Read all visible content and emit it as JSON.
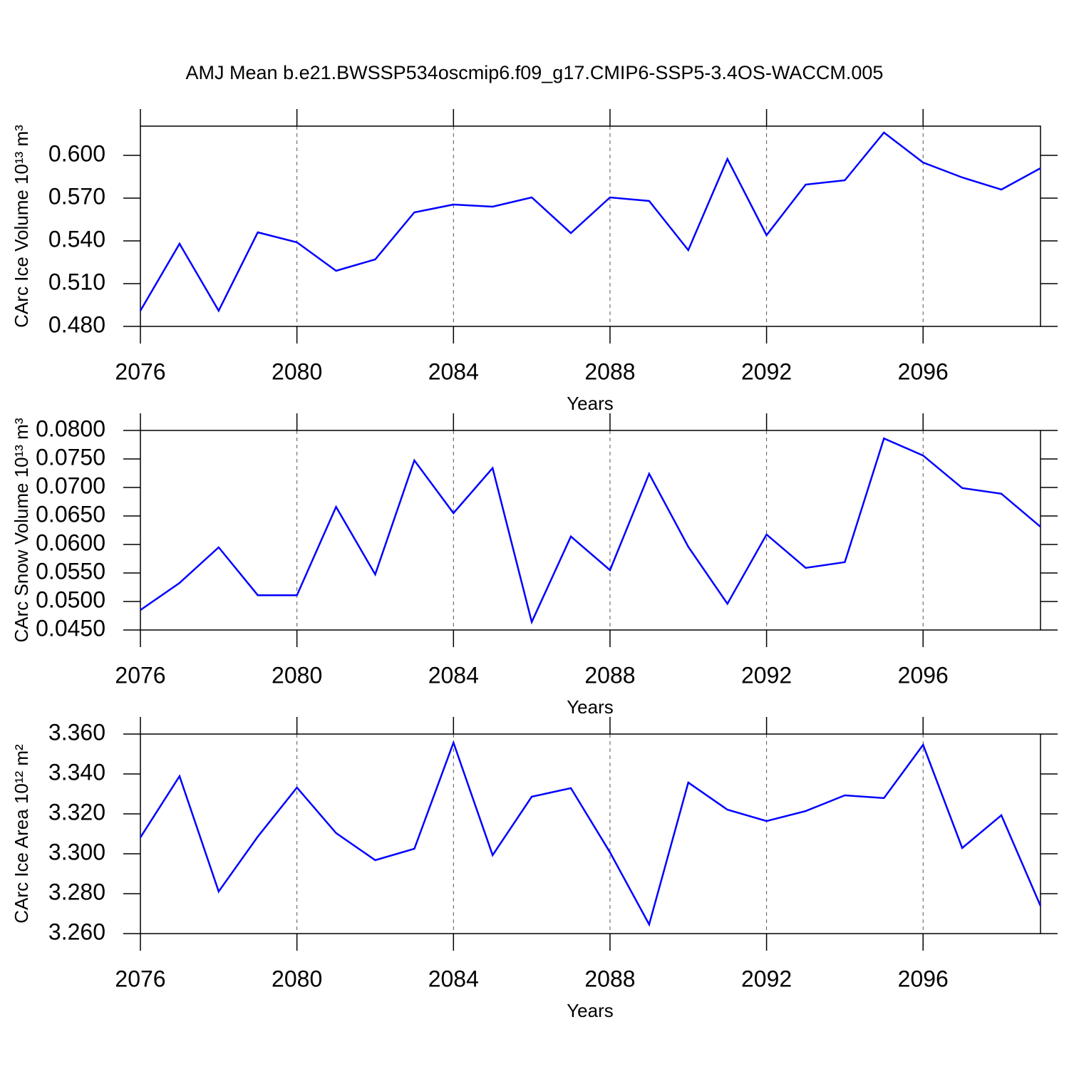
{
  "chart_data": [
    {
      "type": "line",
      "title": "AMJ Mean b.e21.BWSSP534oscmip6.f09_g17.CMIP6-SSP5-3.4OS-WACCM.005",
      "xlabel": "Years",
      "ylabel": "CArc Ice Volume 10¹³ m³",
      "color": "#0000ff",
      "grid": true,
      "x": [
        2076,
        2077,
        2078,
        2079,
        2080,
        2081,
        2082,
        2083,
        2084,
        2085,
        2086,
        2087,
        2088,
        2089,
        2090,
        2091,
        2092,
        2093,
        2094,
        2095,
        2096,
        2097,
        2098,
        2099
      ],
      "values": [
        0.491,
        0.538,
        0.491,
        0.546,
        0.539,
        0.519,
        0.527,
        0.56,
        0.5655,
        0.564,
        0.5705,
        0.5455,
        0.5705,
        0.568,
        0.5335,
        0.5975,
        0.544,
        0.5795,
        0.5825,
        0.616,
        0.595,
        0.5845,
        0.576,
        0.591
      ],
      "xlim": [
        2076,
        2099
      ],
      "xticks": [
        2076,
        2080,
        2084,
        2088,
        2092,
        2096
      ],
      "ylim": [
        0.48,
        0.6205
      ],
      "yticks": [
        {
          "value": 0.48,
          "label": "0.480"
        },
        {
          "value": 0.51,
          "label": "0.510"
        },
        {
          "value": 0.54,
          "label": "0.540"
        },
        {
          "value": 0.57,
          "label": "0.570"
        },
        {
          "value": 0.6,
          "label": "0.600"
        }
      ]
    },
    {
      "type": "line",
      "xlabel": "Years",
      "ylabel": "CArc Snow Volume 10¹³ m³",
      "color": "#0000ff",
      "grid": true,
      "x": [
        2076,
        2077,
        2078,
        2079,
        2080,
        2081,
        2082,
        2083,
        2084,
        2085,
        2086,
        2087,
        2088,
        2089,
        2090,
        2091,
        2092,
        2093,
        2094,
        2095,
        2096,
        2097,
        2098,
        2099
      ],
      "values": [
        0.0485,
        0.05325,
        0.0595,
        0.0511,
        0.0511,
        0.0666,
        0.05475,
        0.07475,
        0.0655,
        0.0734,
        0.0464,
        0.0614,
        0.0555,
        0.0724,
        0.0596,
        0.0496,
        0.06175,
        0.0559,
        0.0569,
        0.0786,
        0.0756,
        0.0699,
        0.0689,
        0.0631
      ],
      "xlim": [
        2076,
        2099
      ],
      "xticks": [
        2076,
        2080,
        2084,
        2088,
        2092,
        2096
      ],
      "ylim": [
        0.045,
        0.08
      ],
      "yticks": [
        {
          "value": 0.045,
          "label": "0.0450"
        },
        {
          "value": 0.05,
          "label": "0.0500"
        },
        {
          "value": 0.055,
          "label": "0.0550"
        },
        {
          "value": 0.06,
          "label": "0.0600"
        },
        {
          "value": 0.065,
          "label": "0.0650"
        },
        {
          "value": 0.07,
          "label": "0.0700"
        },
        {
          "value": 0.075,
          "label": "0.0750"
        },
        {
          "value": 0.08,
          "label": "0.0800"
        }
      ]
    },
    {
      "type": "line",
      "xlabel": "Years",
      "ylabel": "CArc Ice Area 10¹² m²",
      "color": "#0000ff",
      "grid": true,
      "x": [
        2076,
        2077,
        2078,
        2079,
        2080,
        2081,
        2082,
        2083,
        2084,
        2085,
        2086,
        2087,
        2088,
        2089,
        2090,
        2091,
        2092,
        2093,
        2094,
        2095,
        2096,
        2097,
        2098,
        2099
      ],
      "values": [
        3.3082,
        3.3389,
        3.2811,
        3.3086,
        3.3332,
        3.3104,
        3.2968,
        3.3025,
        3.3557,
        3.2993,
        3.3286,
        3.3329,
        3.3007,
        3.2646,
        3.3357,
        3.3221,
        3.3164,
        3.3214,
        3.3293,
        3.3279,
        3.3546,
        3.3029,
        3.3193,
        3.2739
      ],
      "xlim": [
        2076,
        2099
      ],
      "xticks": [
        2076,
        2080,
        2084,
        2088,
        2092,
        2096
      ],
      "ylim": [
        3.26,
        3.36
      ],
      "yticks": [
        {
          "value": 3.26,
          "label": "3.260"
        },
        {
          "value": 3.28,
          "label": "3.280"
        },
        {
          "value": 3.3,
          "label": "3.300"
        },
        {
          "value": 3.32,
          "label": "3.320"
        },
        {
          "value": 3.34,
          "label": "3.340"
        },
        {
          "value": 3.36,
          "label": "3.360"
        }
      ]
    }
  ]
}
